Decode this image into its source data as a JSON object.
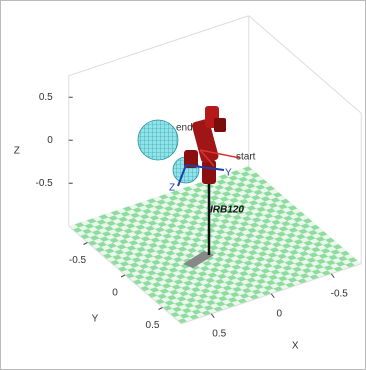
{
  "chart_data": {
    "type": "plot3d",
    "xlabel": "X",
    "ylabel": "Y",
    "zlabel": "Z",
    "xlim": [
      -0.75,
      0.75
    ],
    "ylim": [
      -0.75,
      0.75
    ],
    "zlim": [
      -1,
      0.75
    ],
    "xticks": [
      -0.5,
      0,
      0.5
    ],
    "yticks": [
      -0.5,
      0,
      0.5
    ],
    "zticks": [
      -0.5,
      0,
      0.5
    ],
    "annotations": [
      "end",
      "start",
      "IRB120"
    ],
    "frame_labels": [
      "Y",
      "Z"
    ]
  }
}
